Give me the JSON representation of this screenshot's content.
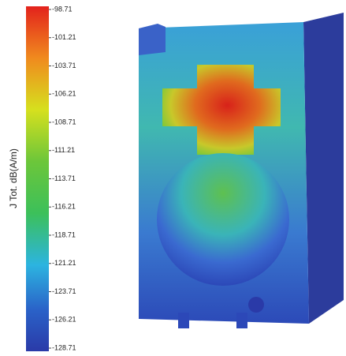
{
  "colorbar": {
    "label": "J Tot. dB(A/m)",
    "lim": [
      -128.71,
      -98.71
    ],
    "ticks": [
      -98.71,
      -101.21,
      -103.71,
      -106.21,
      -108.71,
      -111.21,
      -113.71,
      -116.21,
      -118.71,
      -121.21,
      -123.71,
      -126.21,
      -128.71
    ]
  }
}
